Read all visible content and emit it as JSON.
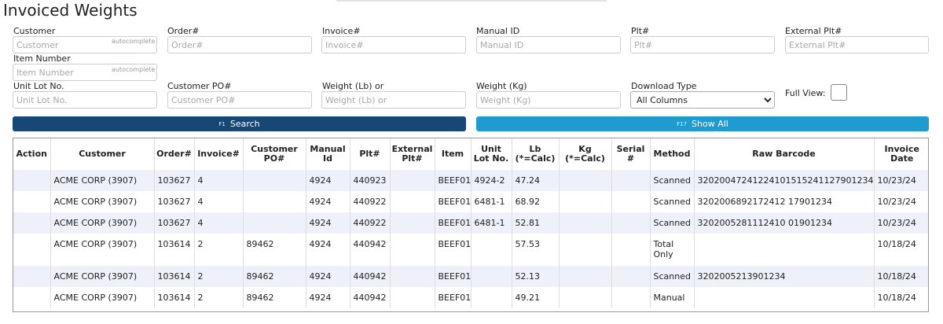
{
  "title": "Invoiced Weights",
  "filters": {
    "customer": {
      "label": "Customer",
      "placeholder": "Customer",
      "hint": "autocomplete"
    },
    "order": {
      "label": "Order#",
      "placeholder": "Order#"
    },
    "invoice": {
      "label": "Invoice#",
      "placeholder": "Invoice#"
    },
    "manual_id": {
      "label": "Manual ID",
      "placeholder": "Manual ID"
    },
    "plt": {
      "label": "Plt#",
      "placeholder": "Plt#"
    },
    "external_plt": {
      "label": "External Plt#",
      "placeholder": "External Plt#"
    },
    "item_number": {
      "label": "Item Number",
      "placeholder": "Item Number",
      "hint": "autocomplete"
    },
    "unit_lot": {
      "label": "Unit Lot No.",
      "placeholder": "Unit Lot No."
    },
    "customer_po": {
      "label": "Customer PO#",
      "placeholder": "Customer PO#"
    },
    "weight_lb": {
      "label": "Weight (Lb) or",
      "placeholder": "Weight (Lb) or"
    },
    "weight_kg": {
      "label": "Weight (Kg)",
      "placeholder": "Weight (Kg)"
    },
    "download_type": {
      "label": "Download Type",
      "selected": "All Columns"
    },
    "full_view": {
      "label": "Full View:"
    }
  },
  "buttons": {
    "search": {
      "key": "F1",
      "label": "Search"
    },
    "show_all": {
      "key": "F17",
      "label": "Show All"
    }
  },
  "table": {
    "headers": {
      "action": "Action",
      "customer": "Customer",
      "order": "Order#",
      "invoice": "Invoice#",
      "customer_po": [
        "Customer",
        "PO#"
      ],
      "manual_id": [
        "Manual",
        "Id"
      ],
      "plt": "Plt#",
      "external_plt": [
        "External",
        "Plt#"
      ],
      "item": "Item",
      "unit_lot": [
        "Unit",
        "Lot No."
      ],
      "lb": [
        "Lb",
        "(*=Calc)"
      ],
      "kg": [
        "Kg",
        "(*=Calc)"
      ],
      "serial": [
        "Serial",
        "#"
      ],
      "method": "Method",
      "raw_barcode": "Raw Barcode",
      "invoice_date": [
        "Invoice",
        "Date"
      ]
    },
    "rows": [
      {
        "action": "",
        "customer": "ACME CORP (3907)",
        "order": "103627",
        "invoice": "4",
        "customer_po": "",
        "manual_id": "4924",
        "plt": "440923",
        "external_plt": "",
        "item": "BEEF01",
        "unit_lot": "4924-2",
        "lb": "47.24",
        "kg": "",
        "serial": "",
        "method": "Scanned",
        "raw_barcode": "32020047241224101515241127901234",
        "invoice_date": "10/23/24"
      },
      {
        "action": "",
        "customer": "ACME CORP (3907)",
        "order": "103627",
        "invoice": "4",
        "customer_po": "",
        "manual_id": "4924",
        "plt": "440922",
        "external_plt": "",
        "item": "BEEF01",
        "unit_lot": "6481-1",
        "lb": "68.92",
        "kg": "",
        "serial": "",
        "method": "Scanned",
        "raw_barcode": "3202006892172412 17901234",
        "invoice_date": "10/23/24"
      },
      {
        "action": "",
        "customer": "ACME CORP (3907)",
        "order": "103627",
        "invoice": "4",
        "customer_po": "",
        "manual_id": "4924",
        "plt": "440922",
        "external_plt": "",
        "item": "BEEF01",
        "unit_lot": "6481-1",
        "lb": "52.81",
        "kg": "",
        "serial": "",
        "method": "Scanned",
        "raw_barcode": "3202005281112410 01901234",
        "invoice_date": "10/23/24"
      },
      {
        "action": "",
        "customer": "ACME CORP (3907)",
        "order": "103614",
        "invoice": "2",
        "customer_po": "89462",
        "manual_id": "4924",
        "plt": "440942",
        "external_plt": "",
        "item": "BEEF01",
        "unit_lot": "",
        "lb": "57.53",
        "kg": "",
        "serial": "",
        "method": "Total Only",
        "raw_barcode": "",
        "invoice_date": "10/18/24"
      },
      {
        "action": "",
        "customer": "ACME CORP (3907)",
        "order": "103614",
        "invoice": "2",
        "customer_po": "89462",
        "manual_id": "4924",
        "plt": "440942",
        "external_plt": "",
        "item": "BEEF01",
        "unit_lot": "",
        "lb": "52.13",
        "kg": "",
        "serial": "",
        "method": "Scanned",
        "raw_barcode": "3202005213901234",
        "invoice_date": "10/18/24"
      },
      {
        "action": "",
        "customer": "ACME CORP (3907)",
        "order": "103614",
        "invoice": "2",
        "customer_po": "89462",
        "manual_id": "4924",
        "plt": "440942",
        "external_plt": "",
        "item": "BEEF01",
        "unit_lot": "",
        "lb": "49.21",
        "kg": "",
        "serial": "",
        "method": "Manual",
        "raw_barcode": "",
        "invoice_date": "10/18/24"
      }
    ]
  }
}
